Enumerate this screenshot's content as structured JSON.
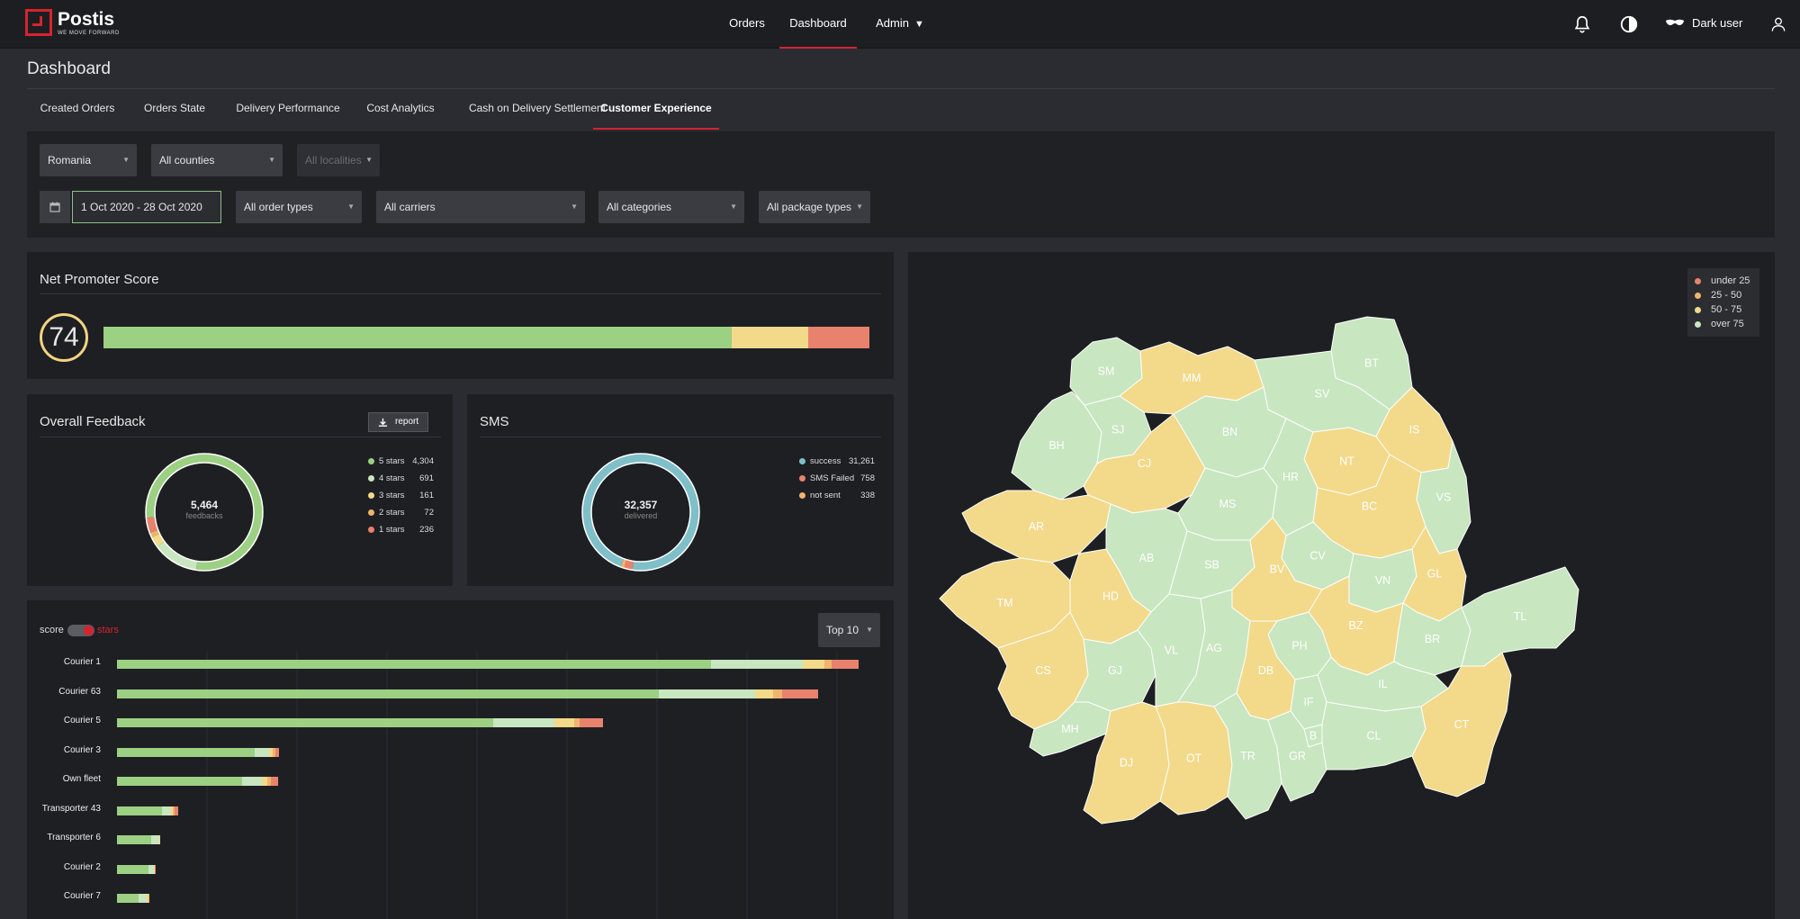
{
  "app": {
    "logo_name": "Postis",
    "logo_tagline": "WE MOVE FORWARD",
    "nav": [
      {
        "label": "Orders"
      },
      {
        "label": "Dashboard"
      },
      {
        "label": "Admin"
      }
    ],
    "user_label": "Dark user"
  },
  "page": {
    "title": "Dashboard",
    "tabs": [
      {
        "label": "Created Orders"
      },
      {
        "label": "Orders State"
      },
      {
        "label": "Delivery Performance"
      },
      {
        "label": "Cost Analytics"
      },
      {
        "label": "Cash on Delivery Settlement"
      },
      {
        "label": "Customer Experience"
      }
    ]
  },
  "filters": {
    "country": "Romania",
    "counties": "All counties",
    "localities": "All localities",
    "date_range": "1 Oct 2020 - 28 Oct 2020",
    "order_types": "All order types",
    "carriers": "All carriers",
    "categories": "All categories",
    "package_types": "All package types"
  },
  "nps": {
    "title": "Net Promoter Score",
    "score": "74",
    "segments": [
      0.82,
      0.1,
      0.08
    ]
  },
  "feedback": {
    "title": "Overall Feedback",
    "report_label": "report",
    "total": "5,464",
    "total_label": "feedbacks",
    "legend": [
      {
        "label": "5 stars",
        "value": "4,304",
        "color": "#9cd083"
      },
      {
        "label": "4 stars",
        "value": "691",
        "color": "#c8e6c0"
      },
      {
        "label": "3 stars",
        "value": "161",
        "color": "#f3d98a"
      },
      {
        "label": "2 stars",
        "value": "72",
        "color": "#f0b46e"
      },
      {
        "label": "1 stars",
        "value": "236",
        "color": "#e8826d"
      }
    ]
  },
  "sms": {
    "title": "SMS",
    "total": "32,357",
    "total_label": "delivered",
    "legend": [
      {
        "label": "success",
        "value": "31,261",
        "color": "#7fbfc9"
      },
      {
        "label": "SMS Failed",
        "value": "758",
        "color": "#e8826d"
      },
      {
        "label": "not sent",
        "value": "338",
        "color": "#f0b46e"
      }
    ]
  },
  "couriers": {
    "toggle_left": "score",
    "toggle_right": "stars",
    "top_select": "Top 10",
    "rows": [
      {
        "name": "Courier 1",
        "values": [
          660,
          102,
          24,
          8,
          30
        ]
      },
      {
        "name": "Courier 63",
        "values": [
          602,
          107,
          20,
          10,
          40
        ]
      },
      {
        "name": "Courier 5",
        "values": [
          418,
          68,
          22,
          6,
          26
        ]
      },
      {
        "name": "Courier 3",
        "values": [
          153,
          16,
          4,
          3,
          4
        ]
      },
      {
        "name": "Own fleet",
        "values": [
          139,
          22,
          6,
          4,
          8
        ]
      },
      {
        "name": "Transporter 43",
        "values": [
          50,
          10,
          2,
          2,
          4
        ]
      },
      {
        "name": "Transporter 6",
        "values": [
          38,
          9,
          1,
          0,
          0
        ]
      },
      {
        "name": "Courier 2",
        "values": [
          35,
          6,
          1,
          0,
          1
        ]
      },
      {
        "name": "Courier 7",
        "values": [
          24,
          9,
          2,
          1,
          0
        ]
      }
    ],
    "colors": [
      "#9cd083",
      "#c8e6c0",
      "#f3d98a",
      "#f0b46e",
      "#e8826d"
    ]
  },
  "map": {
    "legend": [
      {
        "label": "under 25",
        "color": "#e8826d"
      },
      {
        "label": "25 - 50",
        "color": "#f0b46e"
      },
      {
        "label": "50 - 75",
        "color": "#f3d98a"
      },
      {
        "label": "over 75",
        "color": "#c8e6c0"
      }
    ],
    "counties": [
      "SM",
      "MM",
      "BT",
      "SV",
      "BH",
      "SJ",
      "CJ",
      "BN",
      "NT",
      "IS",
      "MS",
      "HR",
      "VS",
      "AR",
      "BC",
      "AB",
      "SB",
      "HD",
      "TM",
      "CV",
      "BV",
      "VN",
      "GL",
      "CS",
      "GJ",
      "VL",
      "AG",
      "PH",
      "BZ",
      "BR",
      "TL",
      "MH",
      "DB",
      "IL",
      "IF",
      "B",
      "DJ",
      "OT",
      "TR",
      "GR",
      "CL",
      "CT"
    ]
  }
}
